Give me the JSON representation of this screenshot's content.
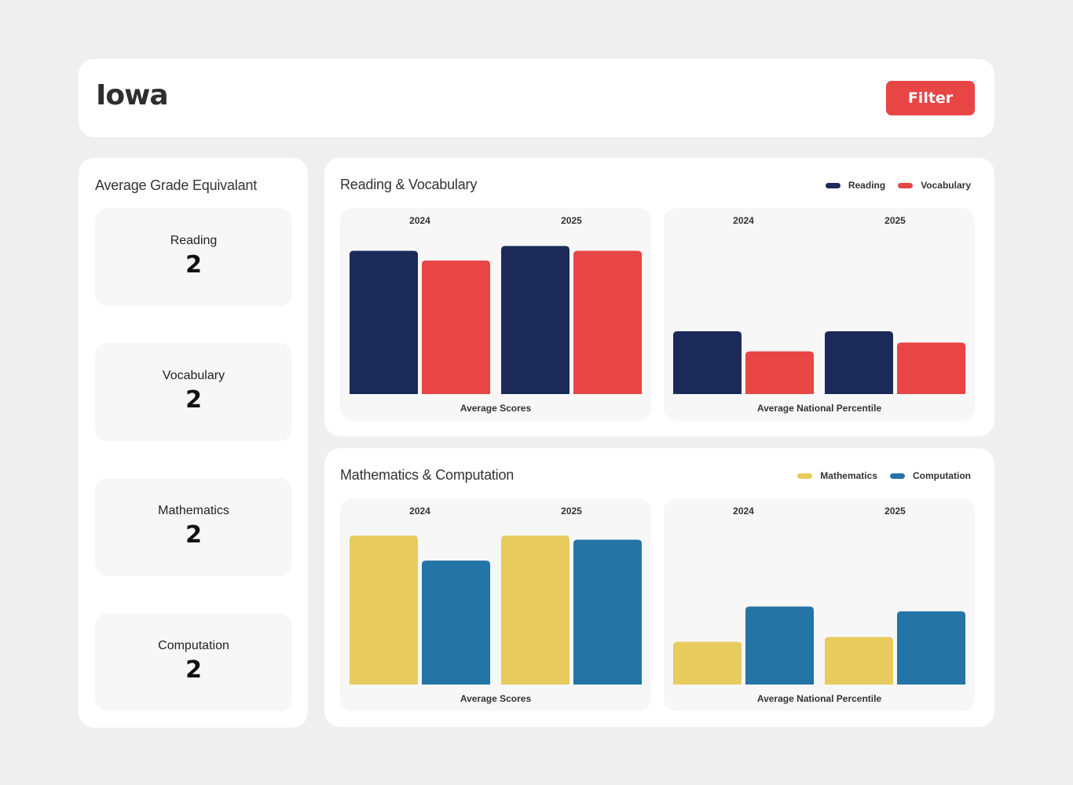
{
  "header": {
    "title": "Iowa",
    "filter_label": "Filter"
  },
  "grade_panel": {
    "title": "Average Grade Equivalant",
    "items": [
      {
        "label": "Reading",
        "value": "2"
      },
      {
        "label": "Vocabulary",
        "value": "2"
      },
      {
        "label": "Mathematics",
        "value": "2"
      },
      {
        "label": "Computation",
        "value": "2"
      }
    ]
  },
  "reading_section": {
    "title": "Reading & Vocabulary",
    "legend": [
      {
        "label": "Reading",
        "color": "#1c2a5a"
      },
      {
        "label": "Vocabulary",
        "color": "#e84545"
      }
    ]
  },
  "math_section": {
    "title": "Mathematics & Computation",
    "legend": [
      {
        "label": "Mathematics",
        "color": "#e8cb5e"
      },
      {
        "label": "Computation",
        "color": "#2475a6"
      }
    ]
  },
  "chart_data": [
    {
      "id": "reading-scores",
      "type": "bar",
      "title": "Average Scores",
      "categories": [
        "2024",
        "2025"
      ],
      "series": [
        {
          "name": "Reading",
          "color": "#1c2a5a",
          "values": [
            178,
            184
          ]
        },
        {
          "name": "Vocabulary",
          "color": "#e84545",
          "values": [
            166,
            178
          ]
        }
      ],
      "ylim": [
        0,
        200
      ]
    },
    {
      "id": "reading-percentile",
      "type": "bar",
      "title": "Average National Percentile",
      "categories": [
        "2024",
        "2025"
      ],
      "series": [
        {
          "name": "Reading",
          "color": "#1c2a5a",
          "values": [
            39,
            39
          ]
        },
        {
          "name": "Vocabulary",
          "color": "#e84545",
          "values": [
            26.5,
            32
          ]
        }
      ],
      "ylim": [
        0,
        100
      ]
    },
    {
      "id": "math-scores",
      "type": "bar",
      "title": "Average Scores",
      "categories": [
        "2024",
        "2025"
      ],
      "series": [
        {
          "name": "Mathematics",
          "color": "#e8cb5e",
          "values": [
            185,
            185
          ]
        },
        {
          "name": "Computation",
          "color": "#2475a6",
          "values": [
            154,
            180
          ]
        }
      ],
      "ylim": [
        0,
        200
      ]
    },
    {
      "id": "math-percentile",
      "type": "bar",
      "title": "Average National Percentile",
      "categories": [
        "2024",
        "2025"
      ],
      "series": [
        {
          "name": "Mathematics",
          "color": "#e8cb5e",
          "values": [
            26.5,
            29.5
          ]
        },
        {
          "name": "Computation",
          "color": "#2475a6",
          "values": [
            48.5,
            45.5
          ]
        }
      ],
      "ylim": [
        0,
        100
      ]
    }
  ]
}
